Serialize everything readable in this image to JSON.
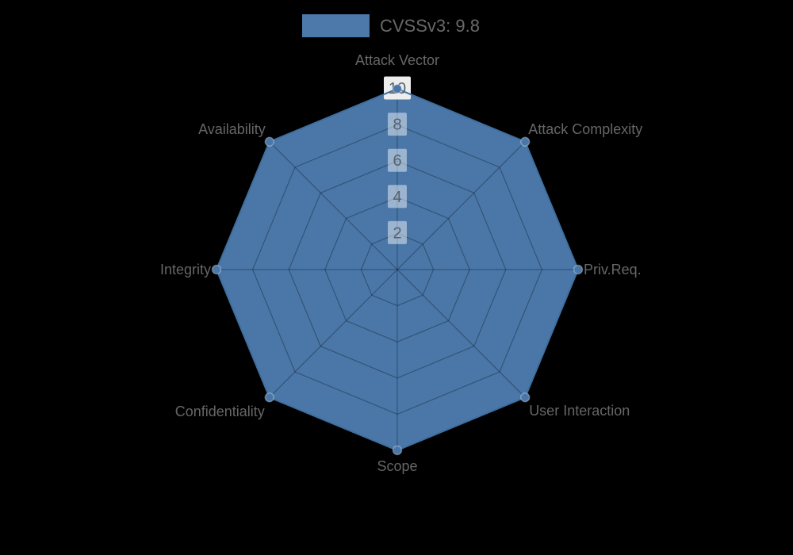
{
  "legend": {
    "label": "CVSSv3: 9.8",
    "swatch_color": "#4d79aa"
  },
  "chart_data": {
    "type": "radar",
    "title": "",
    "categories": [
      "Attack Vector",
      "Attack Complexity",
      "Priv.Req.",
      "User Interaction",
      "Scope",
      "Confidentiality",
      "Integrity",
      "Availability"
    ],
    "series": [
      {
        "name": "CVSSv3: 9.8",
        "values": [
          10,
          10,
          10,
          10,
          10,
          10,
          10,
          10
        ]
      }
    ],
    "score": "9.8",
    "radial_ticks": [
      2,
      4,
      6,
      8,
      10
    ],
    "range": [
      0,
      10
    ],
    "grid": true,
    "legend_position": "top-center",
    "colors": {
      "background": "#000000",
      "fill": "#4a77a8",
      "edge": "#3f6f9f",
      "marker": "#4a77a8",
      "marker_edge": "rgba(255,255,255,0.30)",
      "grid_line": "rgba(15,25,40,0.38)",
      "axis_label": "#666666",
      "tick_text": "#57606b",
      "tick_box_inner": "rgba(255,255,255,0.45)",
      "tick_box_outer": "#ededed",
      "legend_text": "#696969"
    }
  }
}
